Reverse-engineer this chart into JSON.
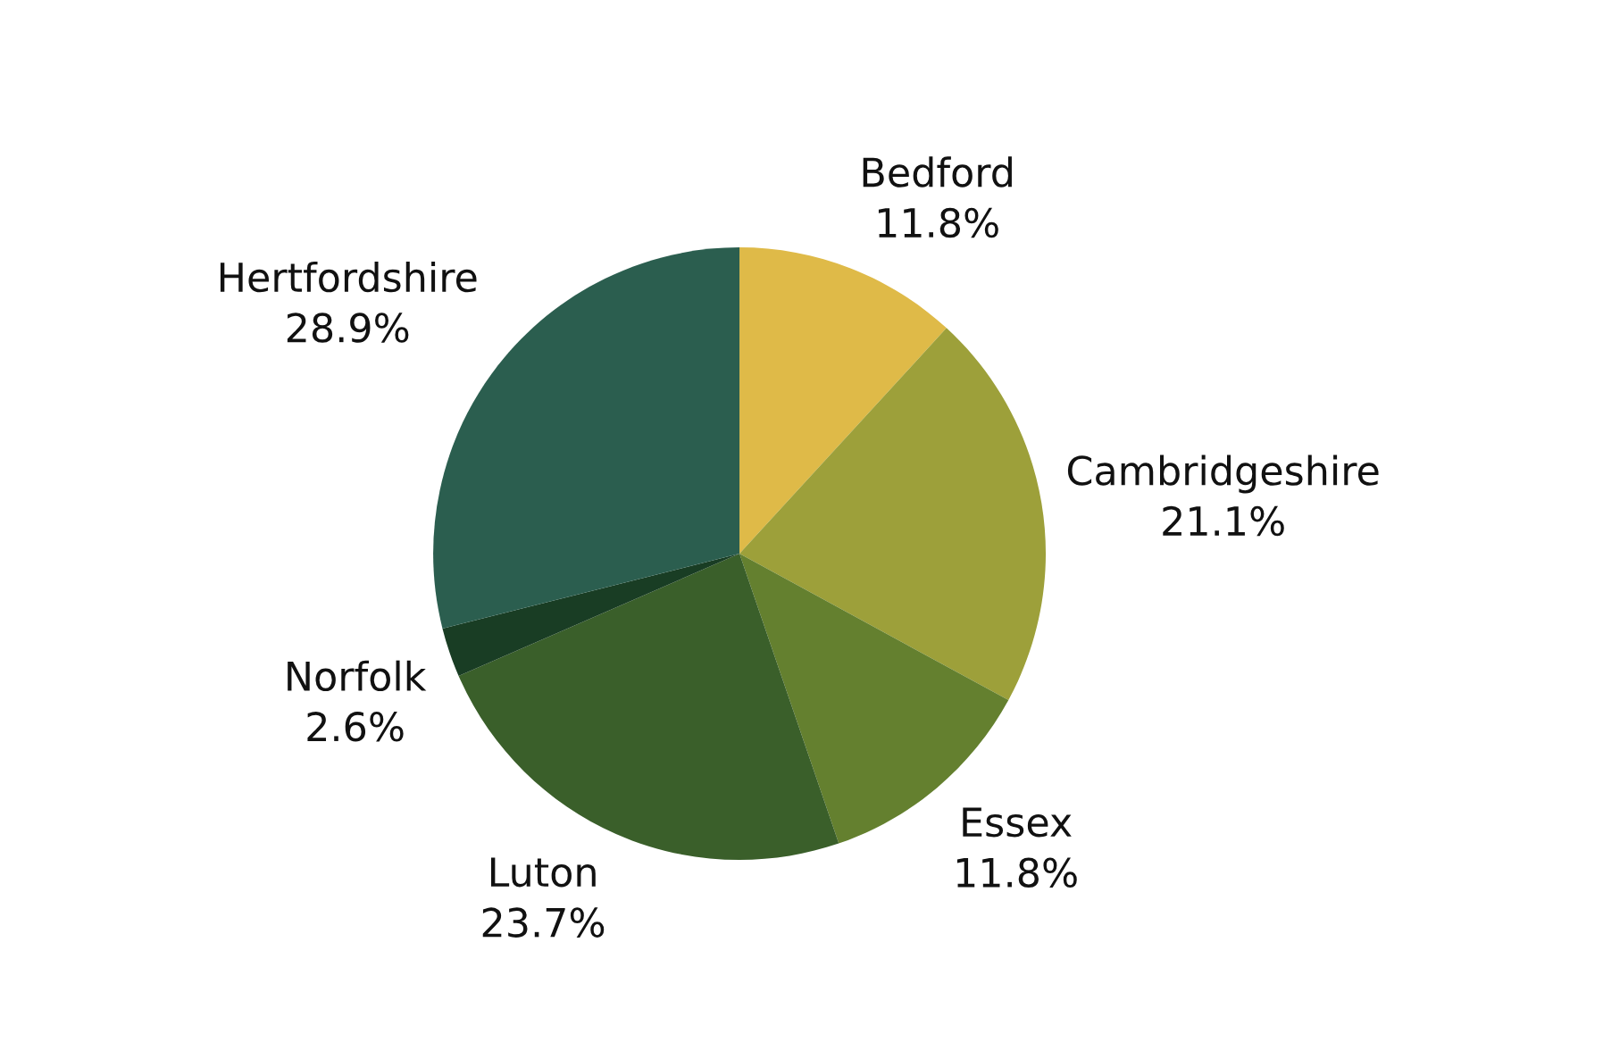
{
  "chart_data": {
    "type": "pie",
    "categories": [
      "Bedford",
      "Cambridgeshire",
      "Essex",
      "Luton",
      "Norfolk",
      "Hertfordshire"
    ],
    "values": [
      11.8,
      21.1,
      11.8,
      23.7,
      2.6,
      28.9
    ],
    "value_labels": [
      "11.8%",
      "21.1%",
      "11.8%",
      "23.7%",
      "2.6%",
      "28.9%"
    ],
    "colors": [
      "#dfba48",
      "#9da03a",
      "#64802f",
      "#3a5f2a",
      "#193d24",
      "#2b5e4f"
    ],
    "legend": false
  }
}
